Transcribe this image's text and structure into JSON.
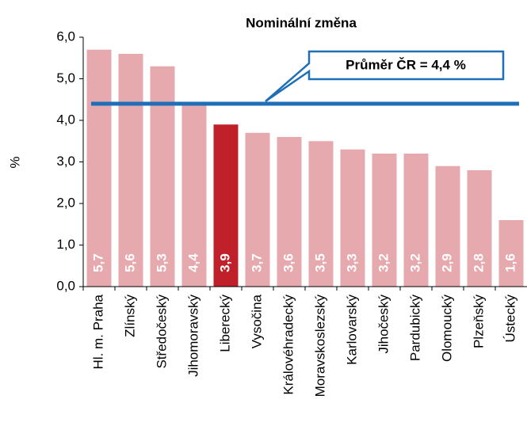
{
  "chart_data": {
    "type": "bar",
    "title": "Nominální změna",
    "ylabel": "%",
    "categories": [
      "Hl. m. Praha",
      "Zlínský",
      "Středočeský",
      "Jihomoravský",
      "Liberecký",
      "Vysočina",
      "Královéhradecký",
      "Moravskoslezský",
      "Karlovarský",
      "Jihočeský",
      "Pardubický",
      "Olomoucký",
      "Plzeňský",
      "Ústecký"
    ],
    "values": [
      5.7,
      5.6,
      5.3,
      4.4,
      3.9,
      3.7,
      3.6,
      3.5,
      3.3,
      3.2,
      3.2,
      2.9,
      2.8,
      1.6
    ],
    "value_labels": [
      "5,7",
      "5,6",
      "5,3",
      "4,4",
      "3,9",
      "3,7",
      "3,6",
      "3,5",
      "3,3",
      "3,2",
      "3,2",
      "2,9",
      "2,8",
      "1,6"
    ],
    "colors": [
      "#e6a9ad",
      "#e6a9ad",
      "#e6a9ad",
      "#e6a9ad",
      "#c0202a",
      "#e6a9ad",
      "#e6a9ad",
      "#e6a9ad",
      "#e6a9ad",
      "#e6a9ad",
      "#e6a9ad",
      "#e6a9ad",
      "#e6a9ad",
      "#e6a9ad"
    ],
    "ylim": [
      0,
      6
    ],
    "yticks": [
      {
        "value": 0,
        "label": "0,0"
      },
      {
        "value": 1,
        "label": "1,0"
      },
      {
        "value": 2,
        "label": "2,0"
      },
      {
        "value": 3,
        "label": "3,0"
      },
      {
        "value": 4,
        "label": "4,0"
      },
      {
        "value": 5,
        "label": "5,0"
      },
      {
        "value": 6,
        "label": "6,0"
      }
    ],
    "reference_line": {
      "value": 4.4,
      "label": "Průměr ČR = 4,4 %",
      "color": "#1f6fb8"
    }
  }
}
